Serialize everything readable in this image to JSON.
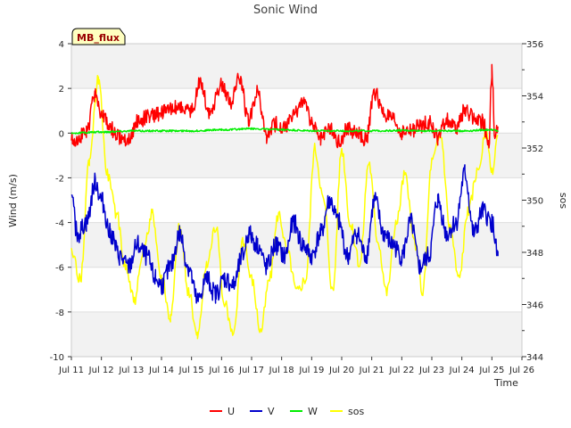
{
  "chart_data": {
    "type": "line",
    "title": "Sonic Wind",
    "xlabel": "Time",
    "ylabel_left": "Wind (m/s)",
    "ylabel_right": "sos",
    "badge": "MB_flux",
    "x_ticks": [
      "Jul 11",
      "Jul 12",
      "Jul 13",
      "Jul 14",
      "Jul 15",
      "Jul 16",
      "Jul 17",
      "Jul 18",
      "Jul 19",
      "Jul 20",
      "Jul 21",
      "Jul 22",
      "Jul 23",
      "Jul 24",
      "Jul 25",
      "Jul 26"
    ],
    "xlim": [
      11,
      26
    ],
    "ylim_left": [
      -10,
      4
    ],
    "ylim_right": [
      344,
      356
    ],
    "y_ticks_left": [
      "-10",
      "-8",
      "-6",
      "-4",
      "-2",
      "0",
      "2",
      "4"
    ],
    "y_ticks_right": [
      "344",
      "346",
      "348",
      "350",
      "352",
      "354",
      "356"
    ],
    "grid_bands": true,
    "series": [
      {
        "name": "U",
        "color": "#ff0000",
        "axis": "left",
        "x": [
          11.0,
          11.5,
          11.8,
          12.0,
          12.3,
          12.6,
          12.9,
          13.2,
          13.6,
          14.0,
          14.5,
          15.0,
          15.3,
          15.6,
          16.0,
          16.3,
          16.6,
          16.9,
          17.2,
          17.5,
          17.8,
          18.1,
          18.4,
          18.7,
          19.0,
          19.3,
          19.6,
          19.9,
          20.2,
          20.5,
          20.8,
          21.1,
          21.4,
          21.7,
          22.0,
          22.3,
          22.6,
          22.9,
          23.2,
          23.5,
          23.8,
          24.1,
          24.4,
          24.7,
          24.9,
          25.0,
          25.1,
          25.2
        ],
        "values": [
          -0.3,
          0.0,
          1.8,
          0.8,
          0.2,
          -0.2,
          -0.3,
          0.5,
          0.8,
          0.9,
          1.2,
          1.0,
          2.3,
          0.9,
          2.2,
          1.4,
          2.5,
          0.6,
          1.8,
          -0.2,
          0.4,
          0.2,
          0.8,
          1.5,
          0.5,
          -0.2,
          0.3,
          -0.4,
          0.2,
          0.0,
          -0.3,
          1.8,
          0.9,
          0.6,
          0.0,
          0.1,
          0.3,
          0.5,
          -0.2,
          0.6,
          0.2,
          1.0,
          0.7,
          0.5,
          -0.5,
          2.8,
          -0.4,
          0.3
        ]
      },
      {
        "name": "V",
        "color": "#0000cc",
        "axis": "left",
        "x": [
          11.0,
          11.2,
          11.5,
          11.8,
          12.0,
          12.3,
          12.6,
          12.9,
          13.2,
          13.5,
          13.8,
          14.0,
          14.3,
          14.6,
          14.9,
          15.2,
          15.5,
          15.8,
          16.1,
          16.4,
          16.7,
          16.9,
          17.2,
          17.5,
          17.8,
          18.1,
          18.4,
          18.7,
          19.0,
          19.3,
          19.6,
          19.9,
          20.2,
          20.5,
          20.8,
          21.1,
          21.4,
          21.7,
          22.0,
          22.3,
          22.6,
          22.9,
          23.2,
          23.5,
          23.8,
          24.1,
          24.4,
          24.7,
          25.0,
          25.2
        ],
        "values": [
          -3.0,
          -4.5,
          -4.0,
          -2.2,
          -3.0,
          -4.5,
          -5.5,
          -6.0,
          -5.0,
          -5.5,
          -6.5,
          -6.8,
          -6.0,
          -4.5,
          -6.0,
          -7.5,
          -6.5,
          -7.2,
          -6.5,
          -6.8,
          -5.5,
          -4.5,
          -5.0,
          -6.0,
          -5.0,
          -5.5,
          -4.0,
          -5.0,
          -5.5,
          -4.5,
          -3.0,
          -4.0,
          -5.5,
          -4.5,
          -5.5,
          -3.0,
          -4.5,
          -5.0,
          -5.5,
          -4.0,
          -6.0,
          -5.5,
          -3.0,
          -4.5,
          -4.0,
          -1.8,
          -4.5,
          -3.5,
          -4.0,
          -5.5
        ]
      },
      {
        "name": "W",
        "color": "#00ee00",
        "axis": "left",
        "x": [
          11.0,
          12.0,
          13.0,
          14.0,
          15.0,
          16.0,
          17.0,
          18.0,
          19.0,
          20.0,
          21.0,
          22.0,
          23.0,
          24.0,
          25.0,
          25.2
        ],
        "values": [
          0.0,
          0.05,
          0.1,
          0.1,
          0.1,
          0.15,
          0.2,
          0.15,
          0.1,
          0.1,
          0.1,
          0.12,
          0.1,
          0.1,
          0.15,
          0.1
        ]
      },
      {
        "name": "sos",
        "color": "#ffff00",
        "axis": "right",
        "x": [
          11.0,
          11.3,
          11.6,
          11.9,
          12.2,
          12.5,
          12.8,
          13.1,
          13.4,
          13.7,
          14.0,
          14.3,
          14.6,
          14.9,
          15.2,
          15.5,
          15.8,
          16.1,
          16.4,
          16.7,
          17.0,
          17.3,
          17.6,
          17.9,
          18.2,
          18.5,
          18.8,
          19.1,
          19.4,
          19.7,
          20.0,
          20.3,
          20.6,
          20.9,
          21.2,
          21.5,
          21.8,
          22.1,
          22.4,
          22.7,
          23.0,
          23.3,
          23.6,
          23.9,
          24.2,
          24.5,
          24.8,
          25.0,
          25.2
        ],
        "values": [
          348.0,
          347.0,
          351.5,
          354.7,
          351.0,
          349.5,
          347.5,
          346.2,
          348.0,
          349.5,
          347.0,
          345.5,
          349.0,
          346.5,
          344.8,
          347.5,
          349.0,
          346.0,
          344.8,
          348.5,
          347.0,
          345.0,
          347.0,
          349.5,
          348.0,
          346.5,
          347.0,
          352.0,
          350.0,
          346.5,
          352.0,
          349.0,
          347.5,
          351.5,
          348.5,
          346.5,
          349.0,
          351.0,
          348.5,
          346.5,
          351.5,
          352.5,
          349.0,
          347.0,
          349.5,
          351.0,
          352.5,
          351.0,
          352.5
        ]
      }
    ]
  }
}
